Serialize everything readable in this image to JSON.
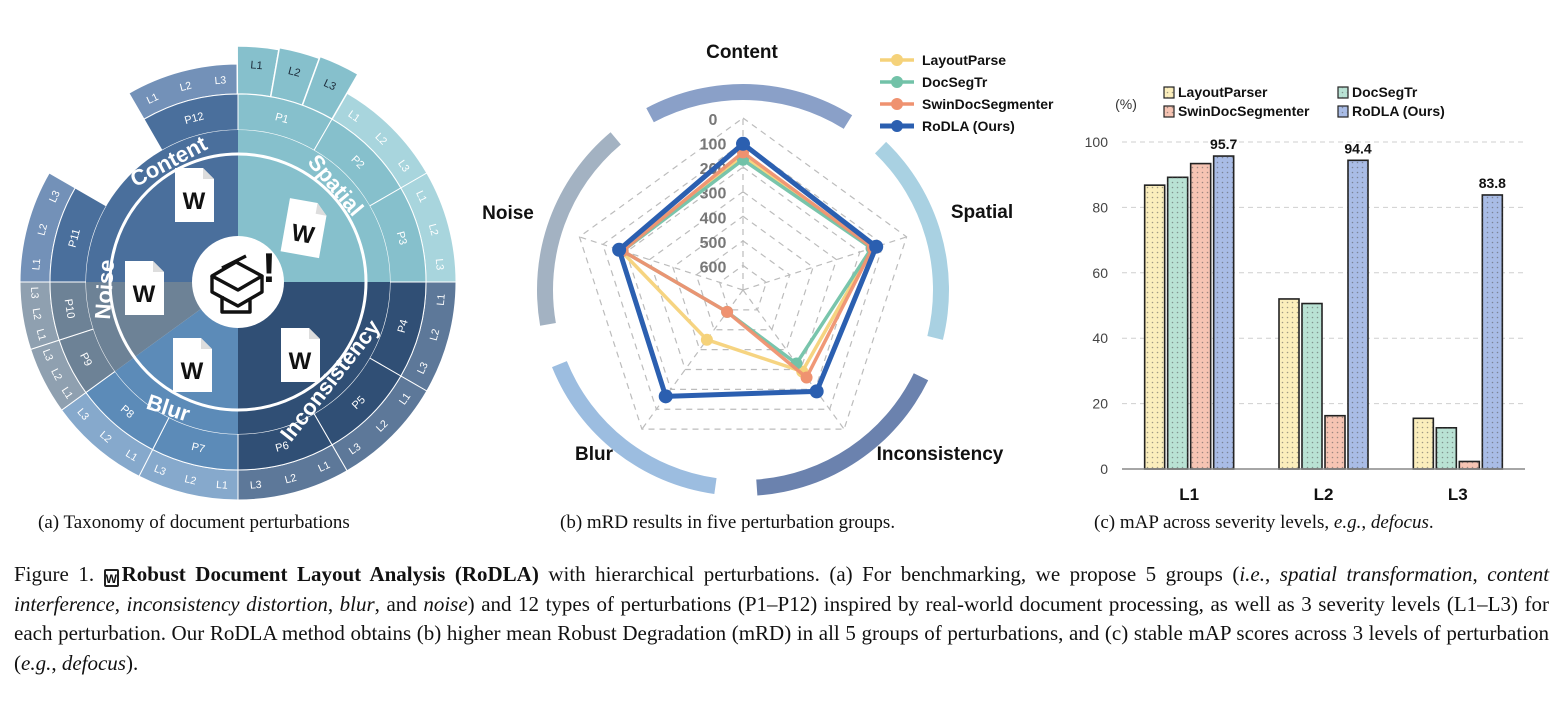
{
  "panel_a": {
    "center_symbol": "!",
    "groups": [
      {
        "name": "Content",
        "color": "#4a6f9c"
      },
      {
        "name": "Spatial",
        "color": "#86c0cc"
      },
      {
        "name": "Inconsistency",
        "color": "#304f75"
      },
      {
        "name": "Blur",
        "color": "#5c8bb8"
      },
      {
        "name": "Noise",
        "color": "#6d8296"
      }
    ],
    "perturbations": [
      "P1",
      "P2",
      "P3",
      "P4",
      "P5",
      "P6",
      "P7",
      "P8",
      "P9",
      "P10",
      "P11",
      "P12"
    ],
    "levels": [
      "L1",
      "L2",
      "L3"
    ],
    "doc_icon_letter": "W",
    "caption": "(a) Taxonomy of document perturbations"
  },
  "chart_data": [
    {
      "type": "radar",
      "axes": [
        "Content",
        "Spatial",
        "Inconsistency",
        "Blur",
        "Noise"
      ],
      "radial_ticks": [
        "0",
        "100",
        "200",
        "300",
        "400",
        "500",
        "600"
      ],
      "radial_range": [
        0,
        700
      ],
      "inverted": true,
      "series": [
        {
          "name": "LayoutParse",
          "color": "#f5d27a",
          "values": [
            155,
            145,
            290,
            450,
            175
          ]
        },
        {
          "name": "DocSegTr",
          "color": "#72c2a8",
          "values": [
            170,
            150,
            330,
            590,
            185
          ]
        },
        {
          "name": "SwinDocSegmenter",
          "color": "#ef9270",
          "values": [
            140,
            145,
            260,
            590,
            185
          ]
        },
        {
          "name": "RoDLA (Ours)",
          "color": "#2b5fb0",
          "values": [
            105,
            130,
            190,
            165,
            170
          ]
        }
      ],
      "caption": "(b) mRD results in five perturbation groups."
    },
    {
      "type": "bar",
      "ylabel": "(%)",
      "categories": [
        "L1",
        "L2",
        "L3"
      ],
      "ylim": [
        0,
        100
      ],
      "yticks": [
        "0",
        "20",
        "40",
        "60",
        "80",
        "100"
      ],
      "series": [
        {
          "name": "LayoutParser",
          "color": "#fbeebc",
          "values": [
            86.8,
            52.0,
            15.5
          ]
        },
        {
          "name": "DocSegTr",
          "color": "#b9e2d4",
          "values": [
            89.2,
            50.6,
            12.6
          ]
        },
        {
          "name": "SwinDocSegmenter",
          "color": "#f6c4b3",
          "values": [
            93.4,
            16.3,
            2.3
          ]
        },
        {
          "name": "RoDLA (Ours)",
          "color": "#a9bce6",
          "values": [
            95.7,
            94.4,
            83.8
          ]
        }
      ],
      "value_labels": [
        "95.7",
        "94.4",
        "83.8"
      ],
      "caption_prefix": "(c) mAP across severity levels, ",
      "caption_italic": "e.g.",
      "caption_mid": ", ",
      "caption_italic2": "defocus",
      "caption_end": "."
    }
  ],
  "figure_caption": {
    "label": "Figure 1. ",
    "icon_letter": "W",
    "title": "Robust Document Layout Analysis (RoDLA)",
    "t1": " with hierarchical perturbations. (a) For benchmarking, we propose 5 groups (",
    "ie": "i.e.",
    "t2": ", ",
    "g1": "spatial transformation",
    "t3": ", ",
    "g2": "content interference",
    "t4": ", ",
    "g3": "inconsistency distortion",
    "t5": ", ",
    "g4": "blur",
    "t6": ", and ",
    "g5": "noise",
    "t7": ") and 12 types of perturbations (P1–P12) inspired by real-world document processing, as well as 3 severity levels (L1–L3) for each perturbation. Our RoDLA method obtains (b) higher mean Robust Degradation (mRD) in all 5 groups of perturbations, and (c) stable mAP scores across 3 levels of perturbation (",
    "eg": "e.g.",
    "t8": ", ",
    "defocus": "defocus",
    "t9": ")."
  }
}
